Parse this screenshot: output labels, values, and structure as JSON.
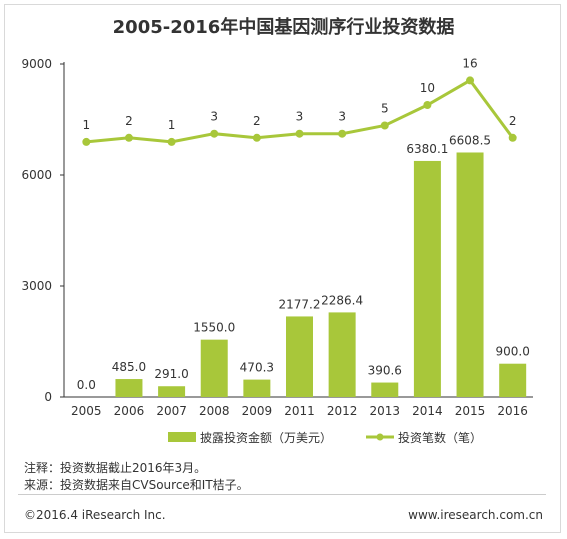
{
  "chart_data": {
    "type": "bar",
    "title": "2005-2016年中国基因测序行业投资数据",
    "categories": [
      "2005",
      "2006",
      "2007",
      "2008",
      "2009",
      "2011",
      "2012",
      "2013",
      "2014",
      "2015",
      "2016"
    ],
    "ylim": [
      0,
      9000
    ],
    "yticks": [
      0,
      3000,
      6000,
      9000
    ],
    "series": [
      {
        "name": "披露投资金额（万美元）",
        "kind": "bar",
        "color": "#a8c73a",
        "values": [
          0.0,
          485.0,
          291.0,
          1550.0,
          470.3,
          2177.2,
          2286.4,
          390.6,
          6380.1,
          6608.5,
          900.0
        ],
        "labels": [
          "0.0",
          "485.0",
          "291.0",
          "1550.0",
          "470.3",
          "2177.2",
          "2286.4",
          "390.6",
          "6380.1",
          "6608.5",
          "900.0"
        ]
      },
      {
        "name": "投资笔数（笔）",
        "kind": "line",
        "color": "#a8c73a",
        "values": [
          1,
          2,
          1,
          3,
          2,
          3,
          3,
          5,
          10,
          16,
          2
        ],
        "labels": [
          "1",
          "2",
          "1",
          "3",
          "2",
          "3",
          "3",
          "5",
          "10",
          "16",
          "2"
        ]
      }
    ],
    "legend": "bottom",
    "grid": false
  },
  "notes": {
    "line1": "注释：投资数据截止2016年3月。",
    "line2": "来源：投资数据来自CVSource和IT桔子。"
  },
  "footer": {
    "copyright": "©2016.4 iResearch Inc.",
    "website": "www.iresearch.com.cn"
  }
}
